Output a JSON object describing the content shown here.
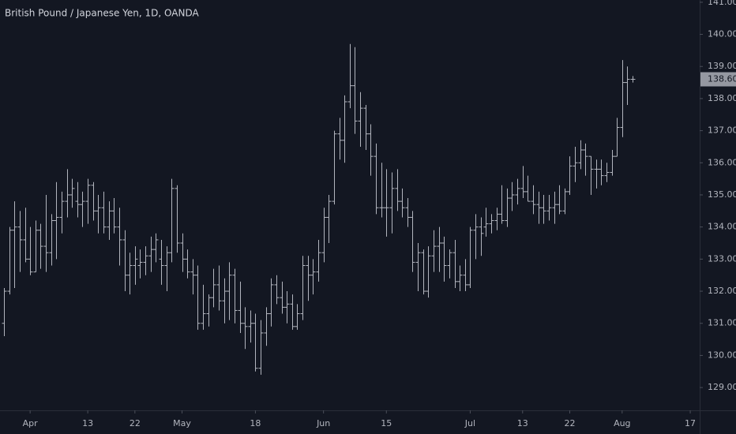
{
  "chart_data": {
    "type": "ohlc",
    "title": "British Pound / Japanese Yen, 1D, OANDA",
    "color": "#b2b5be",
    "open": [
      131.0,
      132.0,
      133.9,
      134.0,
      133.6,
      133.0,
      132.6,
      133.9,
      133.4,
      133.2,
      134.2,
      134.3,
      134.8,
      135.0,
      134.8,
      134.7,
      134.8,
      135.3,
      134.5,
      134.6,
      134.0,
      134.5,
      134.0,
      133.6,
      132.5,
      132.8,
      132.8,
      132.9,
      133.1,
      133.3,
      133.0,
      132.8,
      133.2,
      135.2,
      133.5,
      133.0,
      132.6,
      132.5,
      131.0,
      131.3,
      131.8,
      132.2,
      131.7,
      132.0,
      132.5,
      131.4,
      131.0,
      130.9,
      131.0,
      129.6,
      130.7,
      131.3,
      132.2,
      131.8,
      131.5,
      131.6,
      130.9,
      131.3,
      132.8,
      132.5,
      132.6,
      133.2,
      134.3,
      134.8,
      136.9,
      136.7,
      137.9,
      138.4,
      137.3,
      137.7,
      136.9,
      136.2,
      134.6,
      134.6,
      134.6,
      135.2,
      134.8,
      134.6,
      134.3,
      132.9,
      133.2,
      132.0,
      133.1,
      133.4,
      133.5,
      132.8,
      133.2,
      132.3,
      132.5,
      132.2,
      133.9,
      134.0,
      134.0,
      134.1,
      134.2,
      134.4,
      134.2,
      134.9,
      135.0,
      135.2,
      135.1,
      134.8,
      134.7,
      134.6,
      134.5,
      134.6,
      134.7,
      134.5,
      135.1,
      135.9,
      136.0,
      136.4,
      136.2,
      135.8,
      135.8,
      135.6,
      135.7,
      136.2,
      137.1,
      138.5,
      138.6
    ],
    "high": [
      132.1,
      134.0,
      134.8,
      134.5,
      134.6,
      134.0,
      134.2,
      134.1,
      135.0,
      134.4,
      135.4,
      135.1,
      135.8,
      135.5,
      135.4,
      135.1,
      135.5,
      135.4,
      135.0,
      135.1,
      134.8,
      134.9,
      134.6,
      133.9,
      133.2,
      133.4,
      133.3,
      133.4,
      133.7,
      133.8,
      133.6,
      133.4,
      135.5,
      135.3,
      133.8,
      133.3,
      133.0,
      132.8,
      132.2,
      131.9,
      132.7,
      132.8,
      132.4,
      132.9,
      132.7,
      132.3,
      131.5,
      131.4,
      131.3,
      131.1,
      131.5,
      132.4,
      132.5,
      132.3,
      132.0,
      131.9,
      131.6,
      133.1,
      133.1,
      133.0,
      133.6,
      134.6,
      135.0,
      137.0,
      137.4,
      138.1,
      139.7,
      139.6,
      138.2,
      137.8,
      137.2,
      136.6,
      136.0,
      135.8,
      135.7,
      135.8,
      135.2,
      134.9,
      134.5,
      133.5,
      133.3,
      133.4,
      133.9,
      134.0,
      133.7,
      133.3,
      133.6,
      132.8,
      133.0,
      134.0,
      134.4,
      134.3,
      134.6,
      134.4,
      134.6,
      135.3,
      135.2,
      135.4,
      135.5,
      135.9,
      135.6,
      135.3,
      135.1,
      135.0,
      135.0,
      135.1,
      135.3,
      135.2,
      136.2,
      136.5,
      136.7,
      136.6,
      136.2,
      136.1,
      136.1,
      136.0,
      136.4,
      137.4,
      139.2,
      139.0,
      138.7
    ],
    "low": [
      130.6,
      131.9,
      132.1,
      132.6,
      132.9,
      132.5,
      132.6,
      132.7,
      132.6,
      132.8,
      133.0,
      133.8,
      134.3,
      134.6,
      134.3,
      134.0,
      134.1,
      134.2,
      133.8,
      133.8,
      133.6,
      133.8,
      132.8,
      132.0,
      131.9,
      132.2,
      132.4,
      132.5,
      132.6,
      132.9,
      132.2,
      132.0,
      132.9,
      133.2,
      132.6,
      132.4,
      131.9,
      130.8,
      130.8,
      130.9,
      131.5,
      131.4,
      131.0,
      131.1,
      131.0,
      130.7,
      130.2,
      130.4,
      129.5,
      129.4,
      130.3,
      130.9,
      131.6,
      131.3,
      131.0,
      130.8,
      130.8,
      131.1,
      131.7,
      131.9,
      132.3,
      132.9,
      133.5,
      134.7,
      136.1,
      136.0,
      137.7,
      136.9,
      136.5,
      136.4,
      135.6,
      134.4,
      134.3,
      133.7,
      133.8,
      134.5,
      134.3,
      134.0,
      132.6,
      132.0,
      131.9,
      131.8,
      132.6,
      132.6,
      132.3,
      132.4,
      132.1,
      132.0,
      132.0,
      132.1,
      133.0,
      133.1,
      133.7,
      133.8,
      133.9,
      134.1,
      134.0,
      134.5,
      134.7,
      134.9,
      134.8,
      134.4,
      134.1,
      134.1,
      134.2,
      134.1,
      134.4,
      134.4,
      135.0,
      135.4,
      135.8,
      135.6,
      135.0,
      135.2,
      135.3,
      135.4,
      135.6,
      136.2,
      136.8,
      137.8,
      138.5
    ],
    "close": [
      132.0,
      133.9,
      134.0,
      133.6,
      133.0,
      132.6,
      133.9,
      133.4,
      133.2,
      134.2,
      134.3,
      134.8,
      135.0,
      135.2,
      134.7,
      134.8,
      135.3,
      134.5,
      134.6,
      134.0,
      134.5,
      134.0,
      133.6,
      132.5,
      132.8,
      133.0,
      132.9,
      133.1,
      133.3,
      133.6,
      132.8,
      133.2,
      135.2,
      133.5,
      133.0,
      132.6,
      132.5,
      131.0,
      131.3,
      131.8,
      132.2,
      131.7,
      132.0,
      132.5,
      131.4,
      131.0,
      130.9,
      131.0,
      129.6,
      130.7,
      131.3,
      132.2,
      131.8,
      131.5,
      131.6,
      130.9,
      131.3,
      132.8,
      132.5,
      132.6,
      133.2,
      134.3,
      134.8,
      136.9,
      136.7,
      137.9,
      138.4,
      137.3,
      137.7,
      136.9,
      136.2,
      134.6,
      134.6,
      134.6,
      135.2,
      134.8,
      134.6,
      134.3,
      132.9,
      133.2,
      132.0,
      133.1,
      133.4,
      133.5,
      132.8,
      133.2,
      132.3,
      132.5,
      132.2,
      133.9,
      134.0,
      133.8,
      134.1,
      134.2,
      134.4,
      134.2,
      134.9,
      135.0,
      135.2,
      135.1,
      134.8,
      134.7,
      134.6,
      134.5,
      134.6,
      134.7,
      134.5,
      135.1,
      135.9,
      136.0,
      136.4,
      136.2,
      135.8,
      135.8,
      135.6,
      135.7,
      136.2,
      137.1,
      138.5,
      138.6,
      138.6
    ],
    "last_value": {
      "value": 138.6,
      "label": "138.600"
    },
    "xlim": [
      -0.75,
      132.8
    ],
    "xticks": [
      {
        "value": 5,
        "label": "Apr"
      },
      {
        "value": 16,
        "label": "13"
      },
      {
        "value": 25,
        "label": "22"
      },
      {
        "value": 34,
        "label": "May"
      },
      {
        "value": 48,
        "label": "18"
      },
      {
        "value": 61,
        "label": "Jun"
      },
      {
        "value": 73,
        "label": "15"
      },
      {
        "value": 89,
        "label": "Jul"
      },
      {
        "value": 99,
        "label": "13"
      },
      {
        "value": 108,
        "label": "22"
      },
      {
        "value": 118,
        "label": "Aug"
      },
      {
        "value": 131,
        "label": "17"
      }
    ],
    "ylim": [
      128.29,
      141.07
    ],
    "yticks": [
      {
        "value": 129,
        "label": "129.000"
      },
      {
        "value": 130,
        "label": "130.000"
      },
      {
        "value": 131,
        "label": "131.000"
      },
      {
        "value": 132,
        "label": "132.000"
      },
      {
        "value": 133,
        "label": "133.000"
      },
      {
        "value": 134,
        "label": "134.000"
      },
      {
        "value": 135,
        "label": "135.000"
      },
      {
        "value": 136,
        "label": "136.000"
      },
      {
        "value": 137,
        "label": "137.000"
      },
      {
        "value": 138,
        "label": "138.000"
      },
      {
        "value": 139,
        "label": "139.000"
      },
      {
        "value": 140,
        "label": "140.000"
      },
      {
        "value": 141,
        "label": "141.000"
      }
    ],
    "grid": false
  }
}
